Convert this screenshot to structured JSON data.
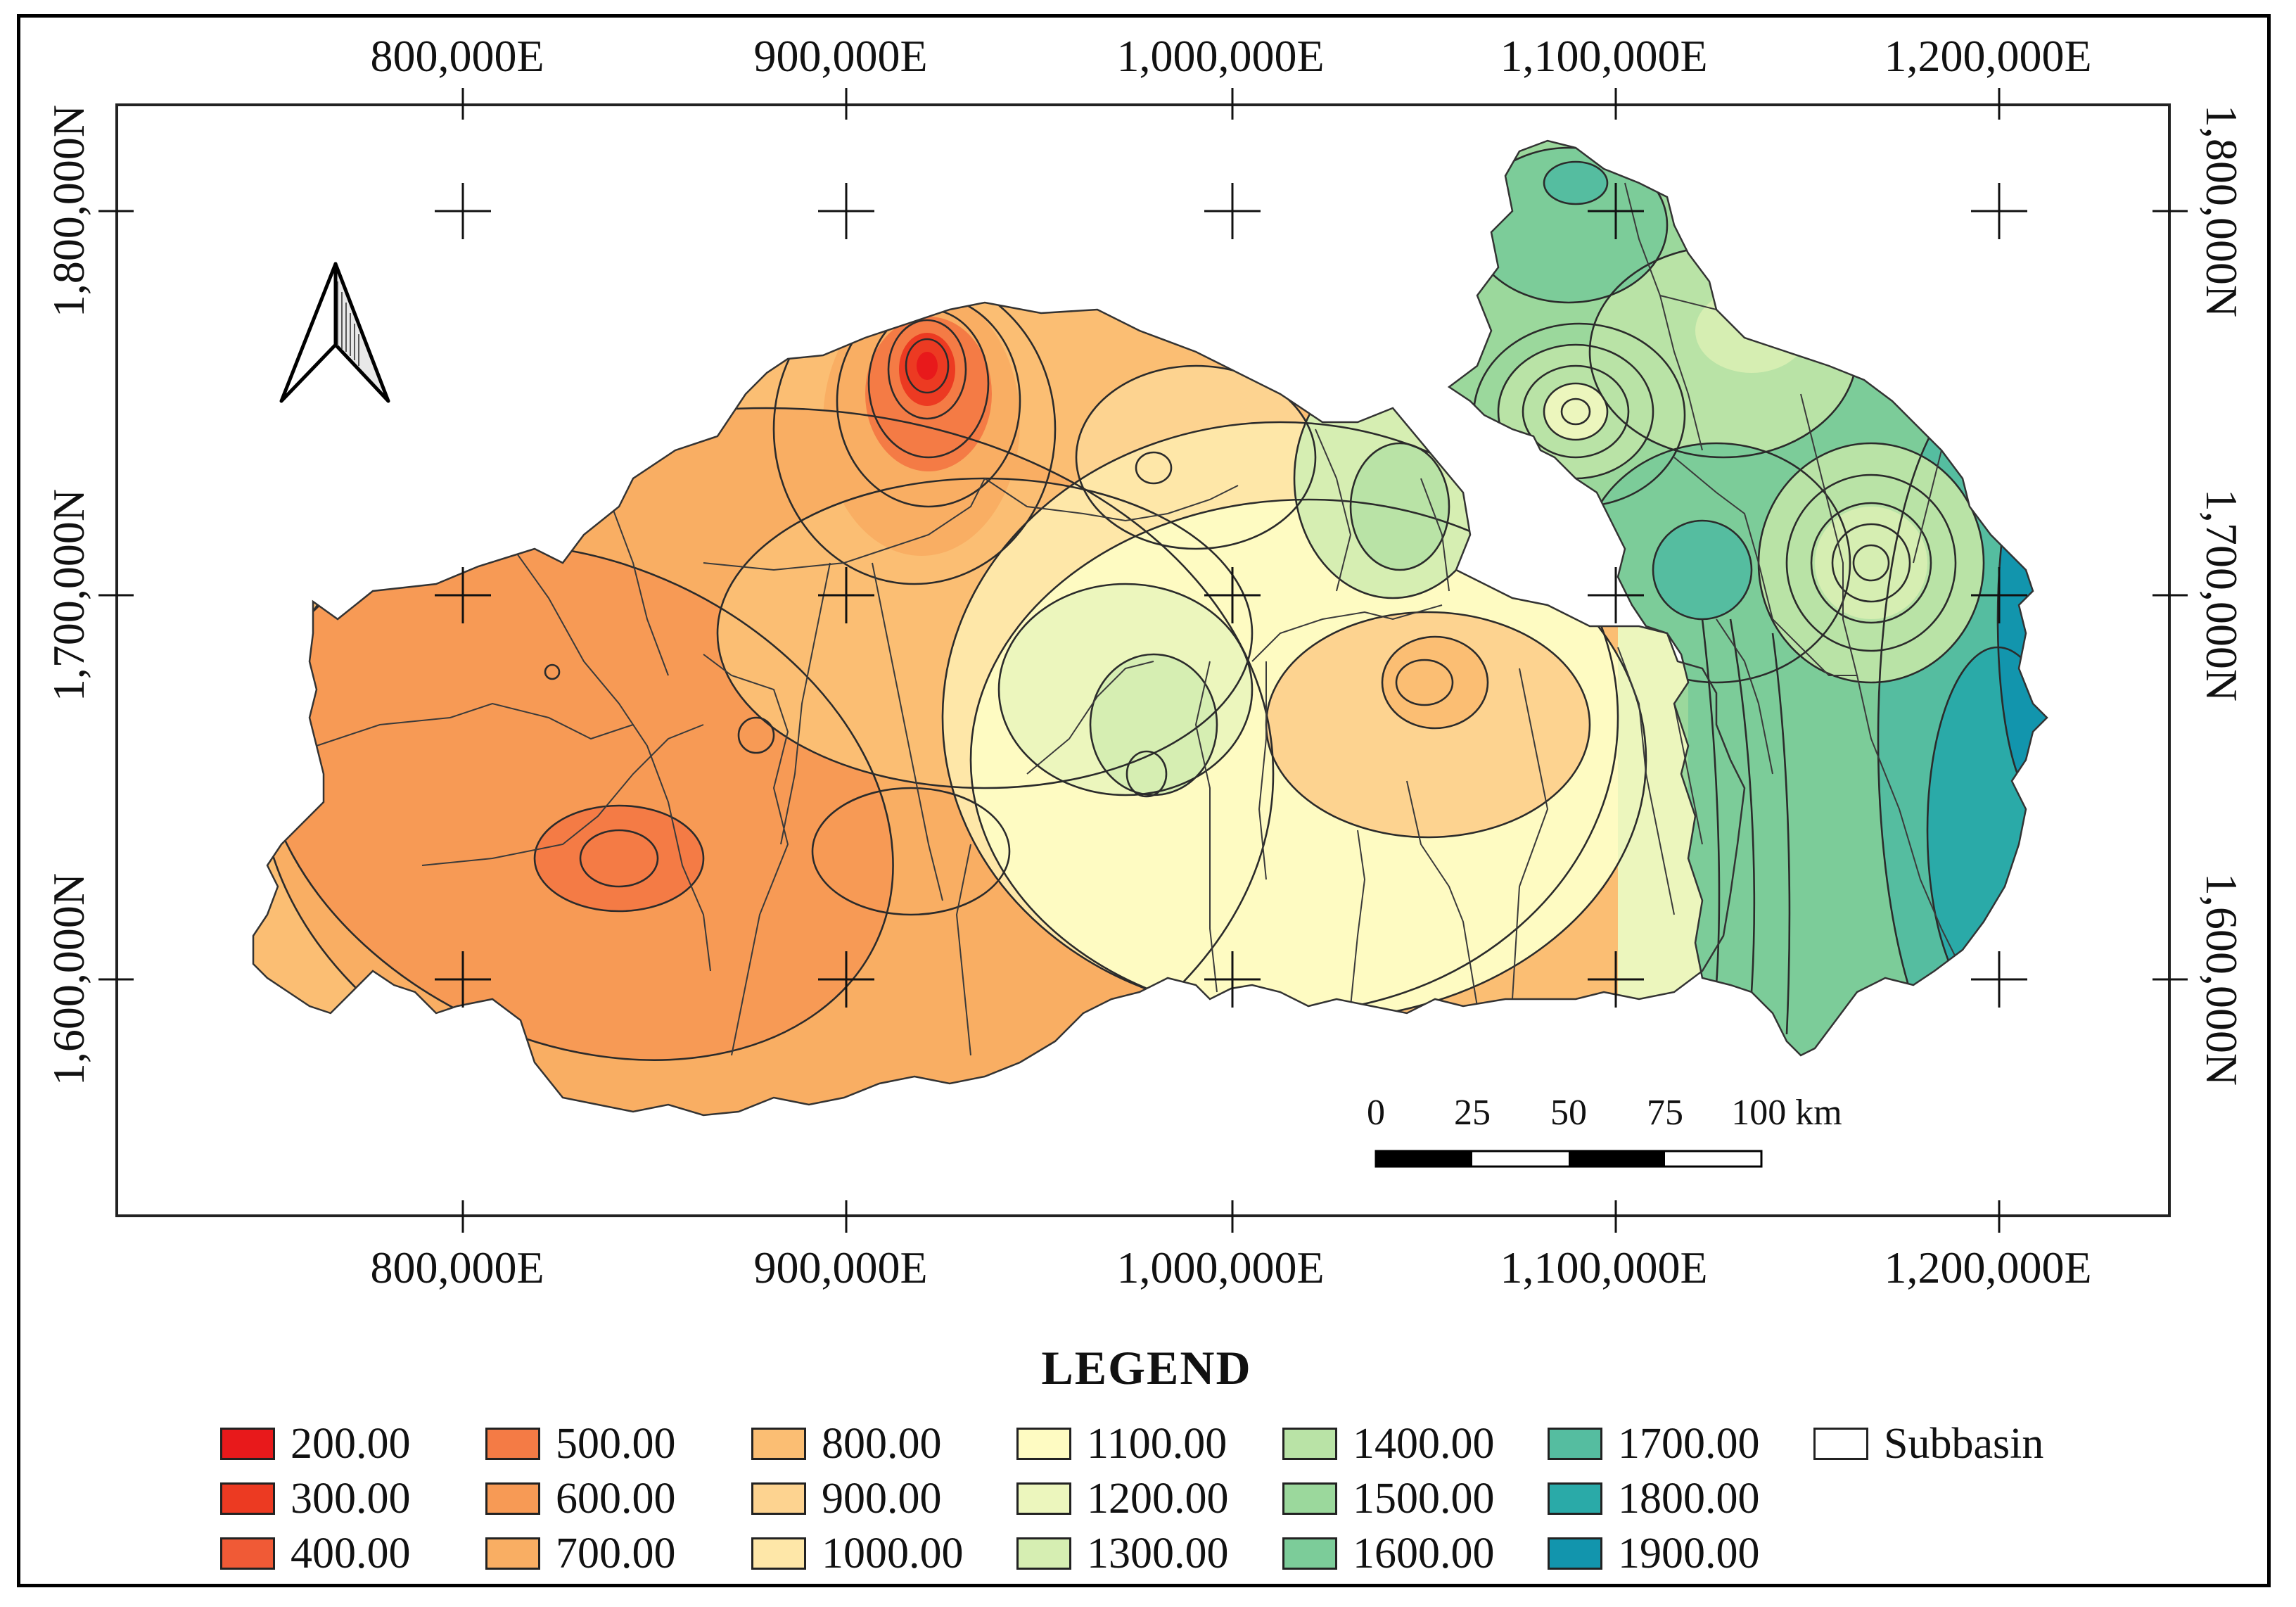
{
  "coordinates": {
    "easting": [
      "800,000E",
      "900,000E",
      "1,000,000E",
      "1,100,000E",
      "1,200,000E"
    ],
    "northing": [
      "1,800,000N",
      "1,700,000N",
      "1,600,000N"
    ]
  },
  "north_arrow": {
    "icon": "north-arrow-icon"
  },
  "scale_bar": {
    "labels": [
      "0",
      "25",
      "50",
      "75",
      "100 km"
    ]
  },
  "legend": {
    "title": "LEGEND",
    "items": [
      {
        "label": "200.00",
        "color": "#e8191b"
      },
      {
        "label": "300.00",
        "color": "#ec3a22"
      },
      {
        "label": "400.00",
        "color": "#f05a36"
      },
      {
        "label": "500.00",
        "color": "#f47b45"
      },
      {
        "label": "600.00",
        "color": "#f79a55"
      },
      {
        "label": "700.00",
        "color": "#f9ae63"
      },
      {
        "label": "800.00",
        "color": "#fbbe73"
      },
      {
        "label": "900.00",
        "color": "#fdd390"
      },
      {
        "label": "1000.00",
        "color": "#fee7a8"
      },
      {
        "label": "1100.00",
        "color": "#fefbc2"
      },
      {
        "label": "1200.00",
        "color": "#ecf6bd"
      },
      {
        "label": "1300.00",
        "color": "#d6eeb2"
      },
      {
        "label": "1400.00",
        "color": "#b9e3a6"
      },
      {
        "label": "1500.00",
        "color": "#9bd89c"
      },
      {
        "label": "1600.00",
        "color": "#7ccc99"
      },
      {
        "label": "1700.00",
        "color": "#55bda0"
      },
      {
        "label": "1800.00",
        "color": "#2aaaa8"
      },
      {
        "label": "1900.00",
        "color": "#1295ad"
      },
      {
        "label": "Subbasin",
        "color": "#ffffff"
      }
    ]
  }
}
